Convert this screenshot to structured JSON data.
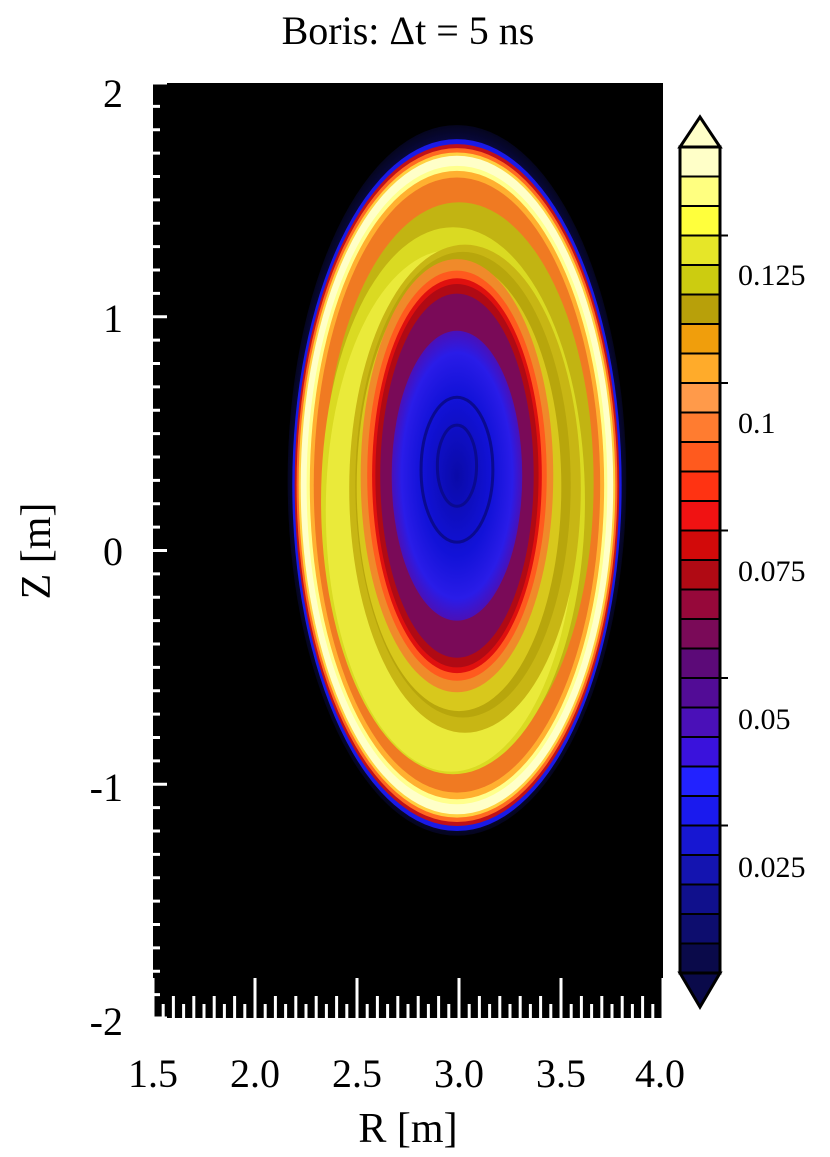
{
  "chart_data": {
    "type": "heatmap",
    "title": "Boris: Δt = 5 ns",
    "xlabel": "R [m]",
    "ylabel": "Z [m]",
    "xlim": [
      1.5,
      4.0
    ],
    "ylim": [
      -2,
      2
    ],
    "xticks": [
      "1.5",
      "2.0",
      "2.5",
      "3.0",
      "3.5",
      "4.0"
    ],
    "yticks": [
      "2",
      "1",
      "0",
      "-1",
      "-2"
    ],
    "background_color": "#000000",
    "colorbar": {
      "range": [
        0,
        0.14
      ],
      "ticks": [
        "0.125",
        "0.1",
        "0.075",
        "0.05",
        "0.025"
      ],
      "tick_values": [
        0.125,
        0.1,
        0.075,
        0.05,
        0.025
      ],
      "levels": 28,
      "extend": "both",
      "colors": [
        "#0a0a4a",
        "#0d0d6e",
        "#10108c",
        "#1414b0",
        "#1717d2",
        "#1a1aee",
        "#2222ff",
        "#3a12dc",
        "#4a10b8",
        "#520c96",
        "#5c0a78",
        "#7a0a58",
        "#96083a",
        "#b00a14",
        "#d20a0a",
        "#f01212",
        "#ff3312",
        "#ff5a1e",
        "#ff7c30",
        "#ff9a4a",
        "#ffab2a",
        "#f09e0c",
        "#b8a00a",
        "#cccc10",
        "#e6e628",
        "#ffff3c",
        "#ffff80",
        "#ffffc8"
      ]
    },
    "features": [
      {
        "name": "edge halo",
        "value": 0.02,
        "center": [
          2.99,
          0.3
        ],
        "rx": 0.83,
        "rz": 1.52
      },
      {
        "name": "outer bright ring",
        "value": 0.14,
        "center": [
          2.99,
          0.28
        ],
        "rx": 0.78,
        "rz": 1.43
      },
      {
        "name": "banded ring",
        "value": 0.105,
        "center": [
          3.0,
          0.29
        ],
        "rx": 0.66,
        "rz": 1.2
      },
      {
        "name": "inner red ring",
        "value": 0.065,
        "center": [
          2.99,
          0.32
        ],
        "rx": 0.4,
        "rz": 0.82
      },
      {
        "name": "core",
        "value": 0.02,
        "center": [
          2.99,
          0.32
        ],
        "rx": 0.32,
        "rz": 0.62
      }
    ]
  }
}
